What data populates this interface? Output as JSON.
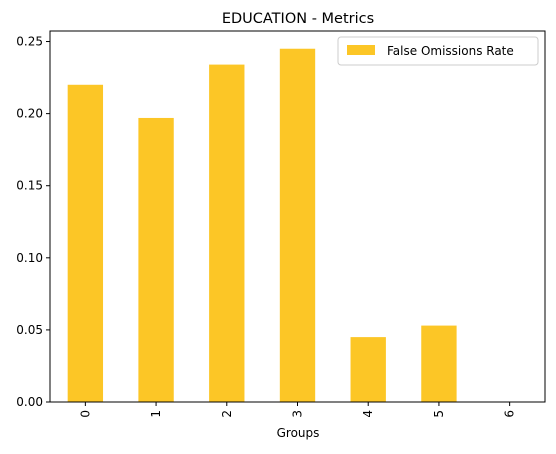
{
  "chart_data": {
    "type": "bar",
    "title": "EDUCATION - Metrics",
    "xlabel": "Groups",
    "ylabel": "",
    "categories": [
      "0",
      "1",
      "2",
      "3",
      "4",
      "5",
      "6"
    ],
    "series": [
      {
        "name": "False Omissions Rate",
        "values": [
          0.22,
          0.197,
          0.234,
          0.245,
          0.045,
          0.053,
          0.0
        ],
        "color": "#fcc626"
      }
    ],
    "ylim": [
      0,
      0.2573
    ],
    "yticks": [
      0.0,
      0.05,
      0.1,
      0.15,
      0.2,
      0.25
    ],
    "ytick_labels": [
      "0.00",
      "0.05",
      "0.10",
      "0.15",
      "0.20",
      "0.25"
    ],
    "xtick_rotation": "vertical",
    "grid": false,
    "legend": "top-right"
  }
}
